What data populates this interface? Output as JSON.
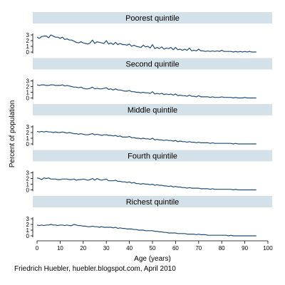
{
  "caption": "Friedrich Huebler, huebler.blogspot.com, April 2010",
  "chart_data": {
    "type": "line",
    "layout": "small-multiples",
    "xlabel": "Age (years)",
    "ylabel": "Percent of population",
    "xlim": [
      0,
      100
    ],
    "xticks": [
      "0",
      "10",
      "20",
      "30",
      "40",
      "50",
      "60",
      "70",
      "80",
      "90",
      "100"
    ],
    "ylim": [
      0,
      3
    ],
    "yticks": [
      "0",
      "1",
      "2",
      "3"
    ],
    "grid": false,
    "line_color": "#1f4e79",
    "strip_color": "#d5e1e9",
    "x": [
      0,
      1,
      2,
      3,
      4,
      5,
      6,
      7,
      8,
      9,
      10,
      11,
      12,
      13,
      14,
      15,
      16,
      17,
      18,
      19,
      20,
      21,
      22,
      23,
      24,
      25,
      26,
      27,
      28,
      29,
      30,
      31,
      32,
      33,
      34,
      35,
      36,
      37,
      38,
      39,
      40,
      41,
      42,
      43,
      44,
      45,
      46,
      47,
      48,
      49,
      50,
      51,
      52,
      53,
      54,
      55,
      56,
      57,
      58,
      59,
      60,
      61,
      62,
      63,
      64,
      65,
      66,
      67,
      68,
      69,
      70,
      71,
      72,
      73,
      74,
      75,
      76,
      77,
      78,
      79,
      80,
      81,
      82,
      83,
      84,
      85,
      86,
      87,
      88,
      89,
      90,
      91,
      92,
      93,
      94,
      95
    ],
    "panels": [
      {
        "title": "Poorest quintile",
        "values": [
          2.6,
          2.4,
          2.7,
          2.8,
          2.8,
          2.5,
          3.0,
          2.8,
          2.6,
          2.6,
          2.4,
          2.6,
          2.2,
          2.3,
          2.1,
          2.1,
          1.9,
          1.7,
          1.6,
          1.8,
          1.6,
          1.5,
          1.4,
          1.6,
          2.1,
          1.5,
          1.8,
          1.7,
          1.6,
          1.5,
          2.0,
          1.4,
          1.6,
          1.3,
          1.7,
          1.3,
          1.5,
          1.3,
          1.3,
          1.2,
          1.4,
          1.0,
          1.2,
          1.0,
          0.9,
          0.8,
          1.2,
          0.9,
          1.0,
          0.7,
          1.3,
          0.6,
          0.8,
          0.6,
          0.9,
          0.5,
          0.7,
          0.6,
          0.8,
          0.4,
          0.8,
          0.4,
          0.5,
          0.3,
          0.5,
          0.3,
          0.7,
          0.2,
          0.3,
          0.2,
          0.5,
          0.2,
          0.2,
          0.1,
          0.2,
          0.1,
          0.2,
          0.1,
          0.2,
          0.1,
          0.3,
          0.1,
          0.1,
          0.1,
          0.1,
          0.0,
          0.1,
          0.0,
          0.1,
          0.0,
          0.1,
          0.0,
          0.1,
          0.0,
          0.0,
          0.0
        ]
      },
      {
        "title": "Second quintile",
        "values": [
          2.3,
          2.2,
          2.3,
          2.3,
          2.2,
          2.2,
          2.3,
          2.3,
          2.2,
          2.2,
          2.2,
          2.3,
          2.1,
          2.2,
          2.1,
          2.0,
          1.9,
          1.9,
          1.8,
          1.9,
          1.7,
          1.6,
          1.6,
          1.7,
          1.9,
          1.6,
          1.7,
          1.6,
          1.6,
          1.7,
          1.8,
          1.5,
          1.6,
          1.4,
          1.6,
          1.4,
          1.4,
          1.3,
          1.2,
          1.2,
          1.3,
          1.1,
          1.1,
          1.0,
          1.0,
          0.9,
          1.0,
          0.9,
          0.9,
          0.8,
          1.1,
          0.7,
          0.8,
          0.7,
          0.8,
          0.6,
          0.7,
          0.6,
          0.7,
          0.5,
          0.7,
          0.4,
          0.5,
          0.4,
          0.4,
          0.3,
          0.5,
          0.3,
          0.3,
          0.2,
          0.4,
          0.2,
          0.2,
          0.2,
          0.2,
          0.1,
          0.2,
          0.1,
          0.1,
          0.1,
          0.2,
          0.1,
          0.1,
          0.1,
          0.1,
          0.0,
          0.1,
          0.0,
          0.0,
          0.0,
          0.1,
          0.0,
          0.0,
          0.0,
          0.0,
          0.0
        ]
      },
      {
        "title": "Middle quintile",
        "values": [
          2.2,
          2.1,
          2.2,
          2.1,
          2.2,
          2.1,
          2.1,
          2.0,
          2.1,
          2.0,
          2.0,
          2.1,
          2.0,
          1.9,
          2.0,
          1.9,
          1.8,
          1.8,
          1.7,
          1.8,
          1.7,
          1.6,
          1.6,
          1.7,
          1.8,
          1.6,
          1.7,
          1.6,
          1.5,
          1.6,
          1.6,
          1.5,
          1.5,
          1.4,
          1.5,
          1.3,
          1.4,
          1.2,
          1.2,
          1.2,
          1.3,
          1.1,
          1.1,
          1.0,
          1.0,
          0.9,
          1.0,
          0.9,
          0.9,
          0.8,
          1.0,
          0.7,
          0.8,
          0.7,
          0.7,
          0.6,
          0.7,
          0.6,
          0.6,
          0.5,
          0.6,
          0.4,
          0.5,
          0.4,
          0.4,
          0.3,
          0.4,
          0.3,
          0.3,
          0.2,
          0.3,
          0.2,
          0.2,
          0.2,
          0.2,
          0.1,
          0.2,
          0.1,
          0.1,
          0.1,
          0.1,
          0.1,
          0.1,
          0.1,
          0.1,
          0.0,
          0.1,
          0.0,
          0.0,
          0.0,
          0.0,
          0.0,
          0.0,
          0.0,
          0.0,
          0.0
        ]
      },
      {
        "title": "Fourth quintile",
        "values": [
          2.1,
          2.0,
          1.8,
          2.1,
          2.0,
          2.1,
          1.9,
          1.9,
          1.9,
          1.8,
          1.8,
          1.9,
          1.9,
          1.9,
          1.8,
          1.8,
          1.9,
          1.7,
          1.8,
          1.8,
          1.9,
          1.8,
          1.7,
          1.8,
          2.0,
          1.7,
          2.0,
          1.8,
          1.7,
          1.8,
          1.9,
          1.6,
          1.6,
          1.6,
          1.7,
          1.5,
          1.5,
          1.4,
          1.4,
          1.3,
          1.4,
          1.2,
          1.3,
          1.1,
          1.1,
          1.0,
          1.1,
          1.0,
          1.0,
          0.9,
          1.0,
          0.8,
          0.9,
          0.8,
          0.8,
          0.7,
          0.7,
          0.6,
          0.7,
          0.5,
          0.6,
          0.5,
          0.5,
          0.4,
          0.4,
          0.3,
          0.4,
          0.3,
          0.3,
          0.3,
          0.3,
          0.2,
          0.2,
          0.2,
          0.2,
          0.1,
          0.2,
          0.1,
          0.1,
          0.1,
          0.1,
          0.1,
          0.1,
          0.1,
          0.1,
          0.0,
          0.1,
          0.0,
          0.0,
          0.0,
          0.0,
          0.0,
          0.0,
          0.0,
          0.0,
          0.0
        ]
      },
      {
        "title": "Richest quintile",
        "values": [
          1.9,
          1.8,
          1.9,
          1.8,
          1.9,
          1.9,
          2.0,
          1.9,
          1.9,
          1.8,
          1.9,
          1.9,
          1.8,
          1.9,
          1.8,
          1.8,
          2.0,
          1.9,
          1.8,
          1.8,
          1.7,
          1.7,
          1.6,
          1.6,
          1.7,
          1.6,
          1.6,
          1.5,
          1.6,
          1.5,
          1.5,
          1.5,
          1.5,
          1.4,
          1.5,
          1.3,
          1.4,
          1.3,
          1.3,
          1.2,
          1.2,
          1.2,
          1.1,
          1.1,
          1.0,
          1.0,
          1.0,
          0.9,
          0.9,
          0.9,
          0.9,
          0.8,
          0.8,
          0.7,
          0.7,
          0.6,
          0.6,
          0.5,
          0.5,
          0.5,
          0.5,
          0.4,
          0.4,
          0.4,
          0.4,
          0.3,
          0.3,
          0.3,
          0.3,
          0.2,
          0.3,
          0.2,
          0.2,
          0.2,
          0.1,
          0.1,
          0.1,
          0.1,
          0.1,
          0.1,
          0.1,
          0.1,
          0.1,
          0.0,
          0.1,
          0.0,
          0.0,
          0.0,
          0.0,
          0.0,
          0.0,
          0.0,
          0.0,
          0.0,
          0.0,
          0.0
        ]
      }
    ]
  }
}
